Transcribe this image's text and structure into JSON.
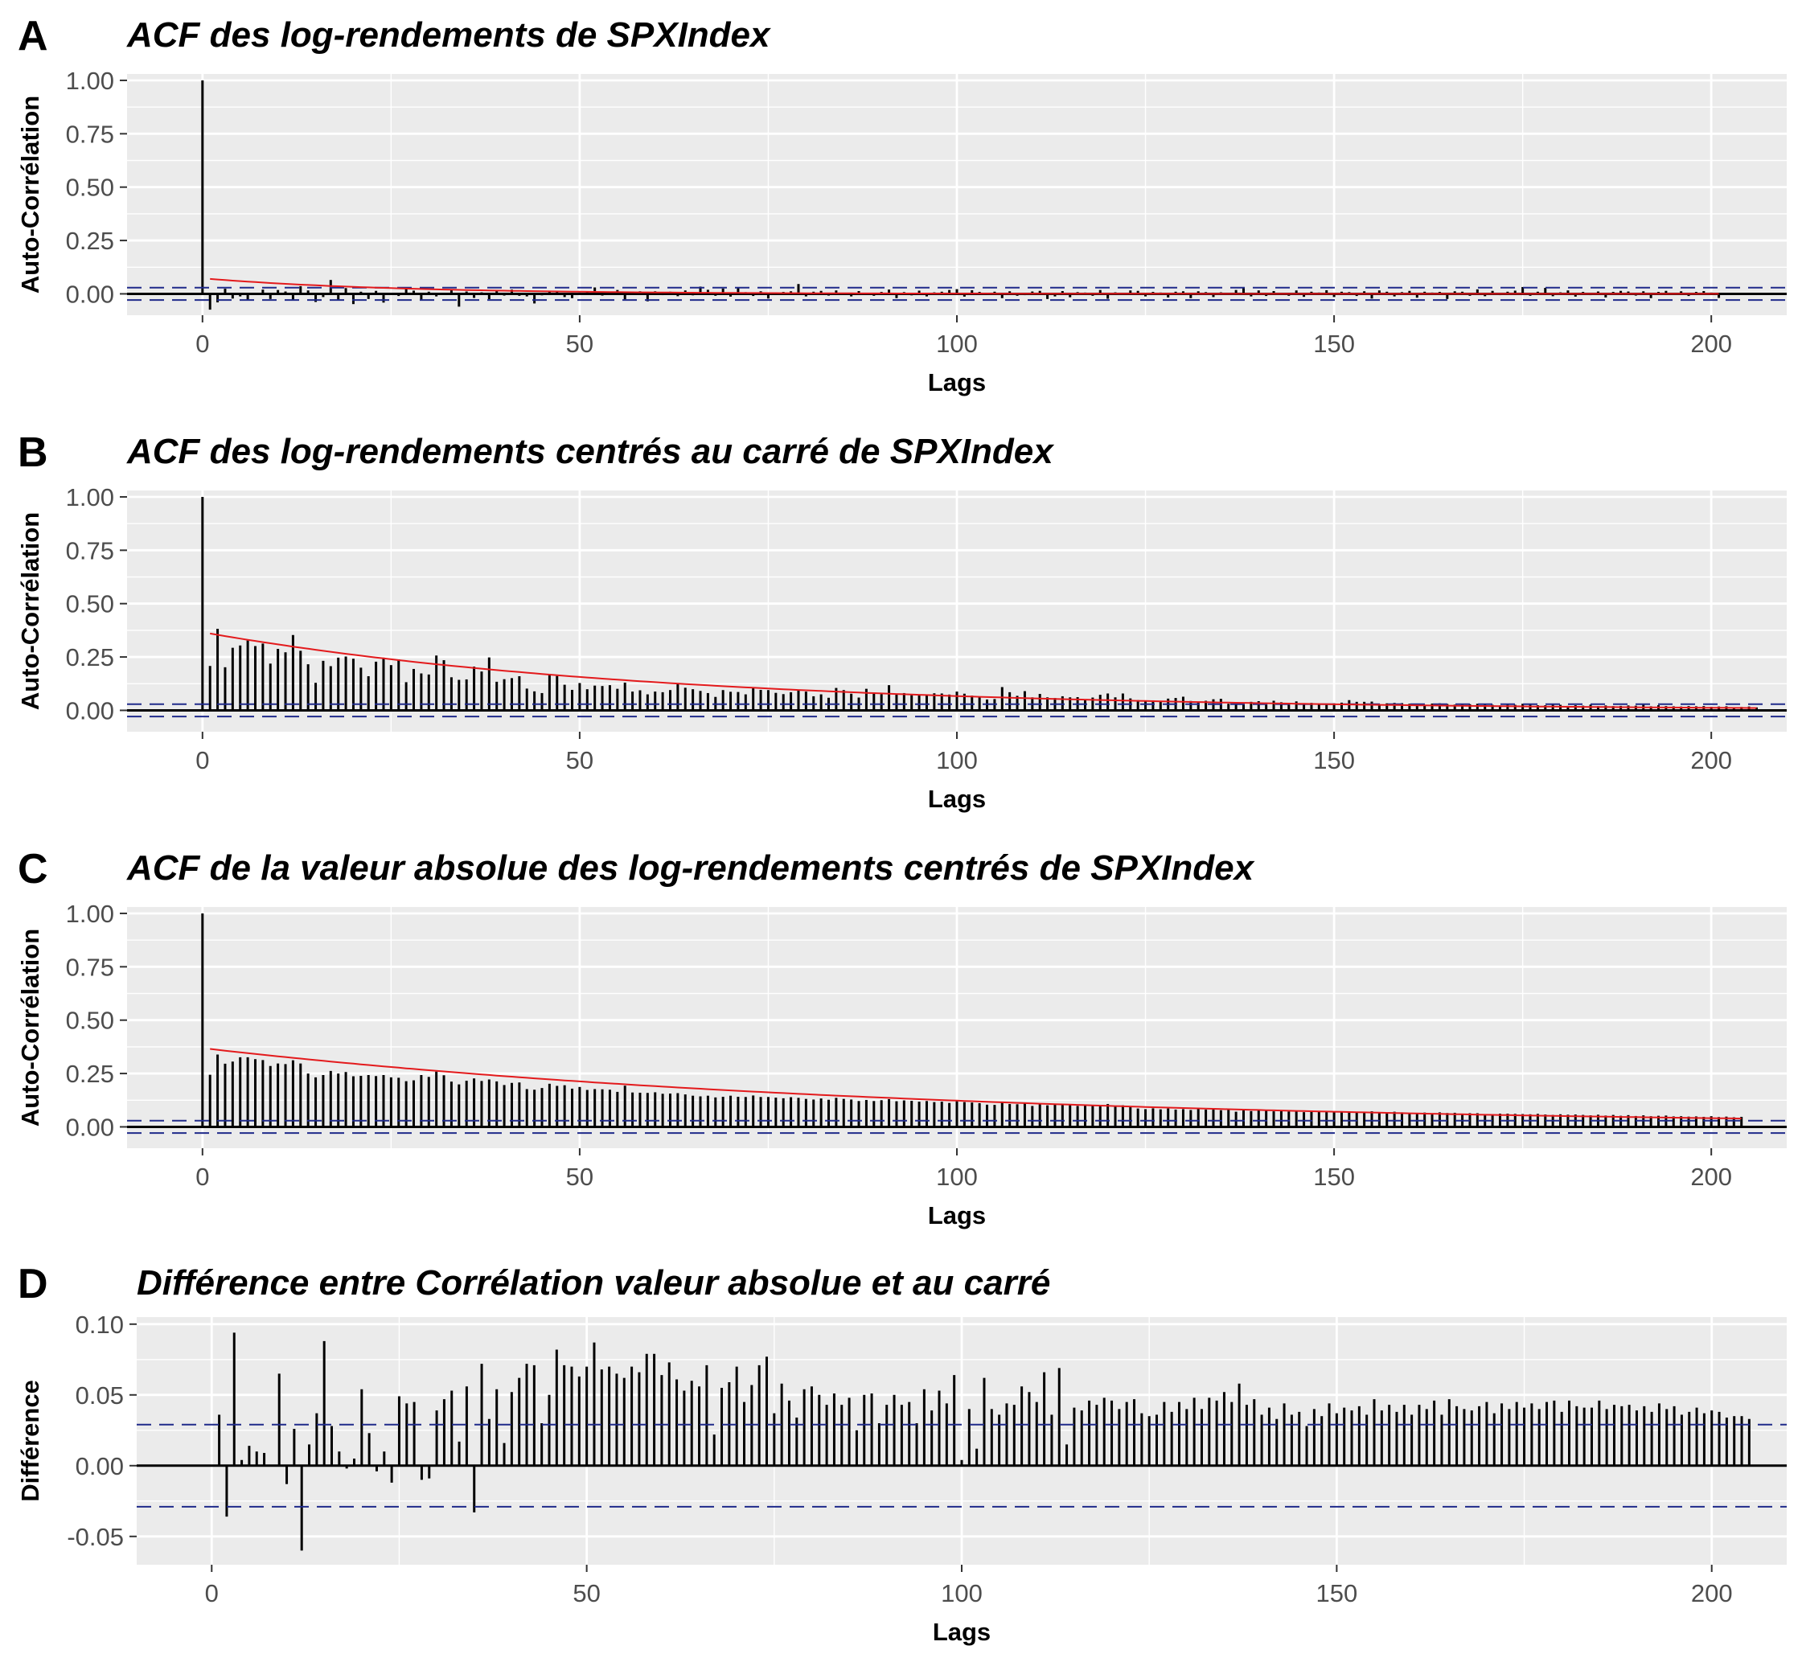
{
  "chart_data": [
    {
      "type": "bar",
      "letter": "A",
      "title": "ACF des log-rendements de SPXIndex",
      "xlabel": "Lags",
      "ylabel": "Auto-Corrélation",
      "xlim": [
        -10,
        210
      ],
      "ylim": [
        -0.1,
        1.03
      ],
      "x_ticks": [
        0,
        50,
        100,
        150,
        200
      ],
      "x_tick_labels": [
        "0",
        "50",
        "100",
        "150",
        "200"
      ],
      "y_ticks": [
        0.0,
        0.25,
        0.5,
        0.75,
        1.0
      ],
      "y_tick_labels": [
        "0.00",
        "0.25",
        "0.50",
        "0.75",
        "1.00"
      ],
      "confidence_band": [
        -0.029,
        0.029
      ],
      "fit_curve": {
        "a": 0.07,
        "rate": 0.04
      },
      "values_by_lag": [
        1.0,
        -0.074,
        -0.04,
        0.024,
        -0.022,
        -0.012,
        -0.03,
        -0.005,
        0.02,
        -0.024,
        0.018,
        0.011,
        -0.03,
        0.036,
        0.016,
        -0.038,
        -0.015,
        0.065,
        -0.032,
        0.027,
        -0.048,
        0.01,
        -0.024,
        0.014,
        -0.041,
        0.004,
        -0.01,
        0.026,
        0.015,
        -0.028,
        0.01,
        -0.012,
        0.005,
        0.02,
        -0.06,
        0.011,
        -0.019,
        0.007,
        -0.025,
        0.013,
        -0.008,
        0.02,
        -0.009,
        -0.012,
        -0.045,
        -0.007,
        0.01,
        0.009,
        -0.015,
        -0.02,
        0.006,
        0.012,
        0.03,
        -0.008,
        0.004,
        0.018,
        -0.026,
        0.005,
        0.012,
        -0.035,
        0.012,
        -0.006,
        0.01,
        -0.011,
        0.016,
        -0.007,
        0.034,
        0.019,
        -0.009,
        0.025,
        -0.013,
        0.03,
        0.008,
        -0.01,
        0.012,
        -0.022,
        -0.005,
        0.009,
        0.012,
        0.046,
        -0.012,
        0.01,
        0.014,
        -0.008,
        0.016,
        0.005,
        -0.012,
        0.013,
        0.005,
        -0.009,
        0.009,
        0.02,
        -0.02,
        0.008,
        -0.007,
        0.015,
        -0.012,
        0.007,
        0.01,
        0.018,
        0.022,
        -0.013,
        0.017,
        0.009,
        -0.005,
        0.01,
        -0.02,
        0.012,
        -0.009,
        -0.006,
        0.011,
        0.014,
        -0.024,
        -0.012,
        0.013,
        -0.016,
        0.008,
        0.006,
        -0.009,
        0.018,
        -0.023,
        0.007,
        -0.005,
        0.016,
        0.014,
        -0.012,
        0.009,
        0.006,
        -0.017,
        0.01,
        0.012,
        -0.02,
        0.012,
        0.008,
        -0.015,
        0.007,
        0.005,
        0.018,
        0.03,
        -0.012,
        0.016,
        -0.01,
        0.013,
        0.005,
        -0.009,
        0.016,
        -0.014,
        0.01,
        0.006,
        0.017,
        -0.015,
        0.01,
        0.008,
        -0.01,
        0.012,
        -0.022,
        0.016,
        0.01,
        -0.012,
        0.008,
        0.014,
        -0.018,
        0.01,
        0.006,
        0.009,
        -0.024,
        0.012,
        0.01,
        -0.009,
        0.021,
        -0.011,
        0.014,
        -0.006,
        0.01,
        0.015,
        0.032,
        -0.009,
        0.01,
        0.028,
        -0.011,
        0.007,
        0.016,
        -0.013,
        0.009,
        -0.006,
        0.011,
        -0.017,
        0.009,
        0.014,
        0.011,
        -0.008,
        0.012,
        -0.02,
        0.009,
        0.014,
        -0.005,
        0.012,
        -0.01,
        0.009,
        0.013,
        0.006,
        -0.019
      ]
    },
    {
      "type": "bar",
      "letter": "B",
      "title": "ACF des log-rendements centrés au carré de SPXIndex",
      "xlabel": "Lags",
      "ylabel": "Auto-Corrélation",
      "xlim": [
        -10,
        210
      ],
      "ylim": [
        -0.1,
        1.03
      ],
      "x_ticks": [
        0,
        50,
        100,
        150,
        200
      ],
      "x_tick_labels": [
        "0",
        "50",
        "100",
        "150",
        "200"
      ],
      "y_ticks": [
        0.0,
        0.25,
        0.5,
        0.75,
        1.0
      ],
      "y_tick_labels": [
        "0.00",
        "0.25",
        "0.50",
        "0.75",
        "1.00"
      ],
      "confidence_band": [
        -0.029,
        0.029
      ],
      "fit_curve": {
        "a": 0.36,
        "rate": 0.017
      },
      "values_by_lag": [
        1.0,
        0.208,
        0.382,
        0.202,
        0.293,
        0.304,
        0.327,
        0.301,
        0.313,
        0.219,
        0.288,
        0.272,
        0.353,
        0.279,
        0.216,
        0.129,
        0.232,
        0.207,
        0.247,
        0.252,
        0.242,
        0.2,
        0.16,
        0.228,
        0.247,
        0.212,
        0.239,
        0.132,
        0.194,
        0.173,
        0.168,
        0.257,
        0.235,
        0.155,
        0.143,
        0.145,
        0.205,
        0.182,
        0.248,
        0.134,
        0.146,
        0.151,
        0.16,
        0.102,
        0.089,
        0.081,
        0.171,
        0.161,
        0.12,
        0.096,
        0.128,
        0.099,
        0.116,
        0.114,
        0.118,
        0.101,
        0.13,
        0.088,
        0.094,
        0.075,
        0.088,
        0.085,
        0.095,
        0.126,
        0.106,
        0.099,
        0.091,
        0.081,
        0.063,
        0.095,
        0.087,
        0.086,
        0.075,
        0.107,
        0.096,
        0.095,
        0.082,
        0.076,
        0.085,
        0.095,
        0.088,
        0.066,
        0.075,
        0.059,
        0.105,
        0.095,
        0.078,
        0.06,
        0.101,
        0.078,
        0.076,
        0.118,
        0.075,
        0.081,
        0.071,
        0.07,
        0.074,
        0.08,
        0.079,
        0.074,
        0.088,
        0.078,
        0.069,
        0.063,
        0.051,
        0.053,
        0.109,
        0.085,
        0.068,
        0.09,
        0.061,
        0.077,
        0.061,
        0.058,
        0.066,
        0.061,
        0.062,
        0.051,
        0.06,
        0.073,
        0.079,
        0.061,
        0.079,
        0.056,
        0.048,
        0.047,
        0.047,
        0.044,
        0.055,
        0.058,
        0.064,
        0.044,
        0.041,
        0.045,
        0.052,
        0.054,
        0.031,
        0.038,
        0.037,
        0.04,
        0.043,
        0.036,
        0.045,
        0.038,
        0.033,
        0.042,
        0.027,
        0.035,
        0.032,
        0.03,
        0.033,
        0.036,
        0.048,
        0.04,
        0.04,
        0.041,
        0.029,
        0.033,
        0.035,
        0.034,
        0.031,
        0.032,
        0.024,
        0.032,
        0.033,
        0.03,
        0.027,
        0.028,
        0.029,
        0.031,
        0.028,
        0.026,
        0.023,
        0.027,
        0.026,
        0.031,
        0.029,
        0.024,
        0.024,
        0.03,
        0.026,
        0.021,
        0.024,
        0.022,
        0.027,
        0.02,
        0.023,
        0.02,
        0.021,
        0.023,
        0.022,
        0.026,
        0.019,
        0.024,
        0.02,
        0.019,
        0.018,
        0.02,
        0.019,
        0.02,
        0.017,
        0.018,
        0.019,
        0.015,
        0.016,
        0.018,
        0.014
      ]
    },
    {
      "type": "bar",
      "letter": "C",
      "title": "ACF de la valeur absolue des log-rendements centrés de SPXIndex",
      "xlabel": "Lags",
      "ylabel": "Auto-Corrélation",
      "xlim": [
        -10,
        210
      ],
      "ylim": [
        -0.1,
        1.03
      ],
      "x_ticks": [
        0,
        50,
        100,
        150,
        200
      ],
      "x_tick_labels": [
        "0",
        "50",
        "100",
        "150",
        "200"
      ],
      "y_ticks": [
        0.0,
        0.25,
        0.5,
        0.75,
        1.0
      ],
      "y_tick_labels": [
        "0.00",
        "0.25",
        "0.50",
        "0.75",
        "1.00"
      ],
      "confidence_band": [
        -0.029,
        0.029
      ],
      "fit_curve": {
        "a": 0.365,
        "rate": 0.011
      },
      "values_by_lag": [
        1.0,
        0.244,
        0.339,
        0.296,
        0.306,
        0.326,
        0.326,
        0.317,
        0.313,
        0.285,
        0.297,
        0.294,
        0.312,
        0.297,
        0.25,
        0.232,
        0.243,
        0.262,
        0.25,
        0.257,
        0.237,
        0.239,
        0.243,
        0.238,
        0.243,
        0.232,
        0.23,
        0.214,
        0.218,
        0.243,
        0.234,
        0.259,
        0.242,
        0.212,
        0.199,
        0.216,
        0.227,
        0.215,
        0.222,
        0.213,
        0.196,
        0.206,
        0.208,
        0.177,
        0.174,
        0.182,
        0.202,
        0.192,
        0.195,
        0.179,
        0.187,
        0.173,
        0.177,
        0.176,
        0.174,
        0.164,
        0.193,
        0.161,
        0.16,
        0.159,
        0.162,
        0.155,
        0.156,
        0.158,
        0.152,
        0.146,
        0.143,
        0.146,
        0.138,
        0.141,
        0.146,
        0.141,
        0.14,
        0.147,
        0.14,
        0.14,
        0.137,
        0.134,
        0.139,
        0.136,
        0.131,
        0.128,
        0.133,
        0.127,
        0.136,
        0.131,
        0.128,
        0.121,
        0.126,
        0.121,
        0.125,
        0.13,
        0.12,
        0.124,
        0.122,
        0.118,
        0.121,
        0.116,
        0.118,
        0.112,
        0.12,
        0.116,
        0.114,
        0.111,
        0.104,
        0.103,
        0.113,
        0.107,
        0.106,
        0.109,
        0.098,
        0.109,
        0.101,
        0.107,
        0.104,
        0.102,
        0.098,
        0.103,
        0.1,
        0.097,
        0.107,
        0.094,
        0.101,
        0.092,
        0.086,
        0.083,
        0.087,
        0.082,
        0.086,
        0.081,
        0.083,
        0.079,
        0.084,
        0.081,
        0.082,
        0.078,
        0.084,
        0.071,
        0.077,
        0.074,
        0.077,
        0.078,
        0.073,
        0.075,
        0.072,
        0.074,
        0.069,
        0.076,
        0.07,
        0.075,
        0.07,
        0.072,
        0.069,
        0.071,
        0.067,
        0.073,
        0.066,
        0.068,
        0.071,
        0.068,
        0.064,
        0.065,
        0.067,
        0.062,
        0.068,
        0.065,
        0.066,
        0.062,
        0.064,
        0.064,
        0.06,
        0.059,
        0.062,
        0.062,
        0.061,
        0.06,
        0.059,
        0.061,
        0.058,
        0.056,
        0.059,
        0.057,
        0.058,
        0.056,
        0.054,
        0.057,
        0.053,
        0.056,
        0.052,
        0.055,
        0.051,
        0.054,
        0.05,
        0.052,
        0.053,
        0.049,
        0.05,
        0.048,
        0.049,
        0.047,
        0.05,
        0.046,
        0.048,
        0.045,
        0.047
      ]
    },
    {
      "type": "bar",
      "letter": "D",
      "title": "Différence entre Corrélation valeur absolue et au carré",
      "xlabel": "Lags",
      "ylabel": "Différence",
      "xlim": [
        -10,
        210
      ],
      "ylim": [
        -0.07,
        0.105
      ],
      "x_ticks": [
        0,
        50,
        100,
        150,
        200
      ],
      "x_tick_labels": [
        "0",
        "50",
        "100",
        "150",
        "200"
      ],
      "y_ticks": [
        -0.05,
        0.0,
        0.05,
        0.1
      ],
      "y_tick_labels": [
        "-0.05",
        "0.00",
        "0.05",
        "0.10"
      ],
      "confidence_band": [
        -0.029,
        0.029
      ],
      "values_by_lag": [
        0.0,
        0.036,
        -0.036,
        0.094,
        0.004,
        0.014,
        0.01,
        0.009,
        0.0,
        0.065,
        -0.013,
        0.026,
        -0.06,
        0.015,
        0.037,
        0.088,
        0.028,
        0.01,
        -0.002,
        0.005,
        0.054,
        0.023,
        -0.004,
        0.01,
        -0.012,
        0.049,
        0.044,
        0.045,
        -0.01,
        -0.009,
        0.039,
        0.047,
        0.053,
        0.017,
        0.056,
        -0.033,
        0.072,
        0.033,
        0.054,
        0.016,
        0.052,
        0.062,
        0.072,
        0.071,
        0.03,
        0.05,
        0.082,
        0.071,
        0.07,
        0.063,
        0.07,
        0.087,
        0.068,
        0.07,
        0.065,
        0.062,
        0.07,
        0.066,
        0.079,
        0.079,
        0.064,
        0.073,
        0.061,
        0.053,
        0.06,
        0.056,
        0.071,
        0.022,
        0.055,
        0.059,
        0.07,
        0.045,
        0.057,
        0.071,
        0.077,
        0.037,
        0.058,
        0.046,
        0.034,
        0.054,
        0.056,
        0.05,
        0.043,
        0.051,
        0.043,
        0.048,
        0.025,
        0.05,
        0.051,
        0.03,
        0.043,
        0.05,
        0.043,
        0.045,
        0.03,
        0.054,
        0.039,
        0.053,
        0.044,
        0.064,
        0.004,
        0.04,
        0.012,
        0.062,
        0.04,
        0.036,
        0.044,
        0.043,
        0.056,
        0.052,
        0.045,
        0.066,
        0.036,
        0.069,
        0.015,
        0.041,
        0.039,
        0.046,
        0.043,
        0.048,
        0.046,
        0.04,
        0.045,
        0.047,
        0.037,
        0.035,
        0.036,
        0.045,
        0.038,
        0.045,
        0.04,
        0.048,
        0.04,
        0.048,
        0.046,
        0.052,
        0.045,
        0.058,
        0.043,
        0.047,
        0.036,
        0.041,
        0.033,
        0.044,
        0.036,
        0.038,
        0.028,
        0.04,
        0.035,
        0.044,
        0.037,
        0.041,
        0.039,
        0.042,
        0.036,
        0.047,
        0.039,
        0.043,
        0.038,
        0.043,
        0.036,
        0.043,
        0.04,
        0.046,
        0.036,
        0.047,
        0.042,
        0.04,
        0.039,
        0.042,
        0.045,
        0.037,
        0.044,
        0.04,
        0.045,
        0.041,
        0.044,
        0.04,
        0.045,
        0.046,
        0.038,
        0.046,
        0.042,
        0.041,
        0.041,
        0.046,
        0.04,
        0.043,
        0.042,
        0.043,
        0.039,
        0.042,
        0.038,
        0.044,
        0.04,
        0.042,
        0.036,
        0.038,
        0.041,
        0.037,
        0.039,
        0.038,
        0.034,
        0.035,
        0.035,
        0.033
      ]
    }
  ]
}
